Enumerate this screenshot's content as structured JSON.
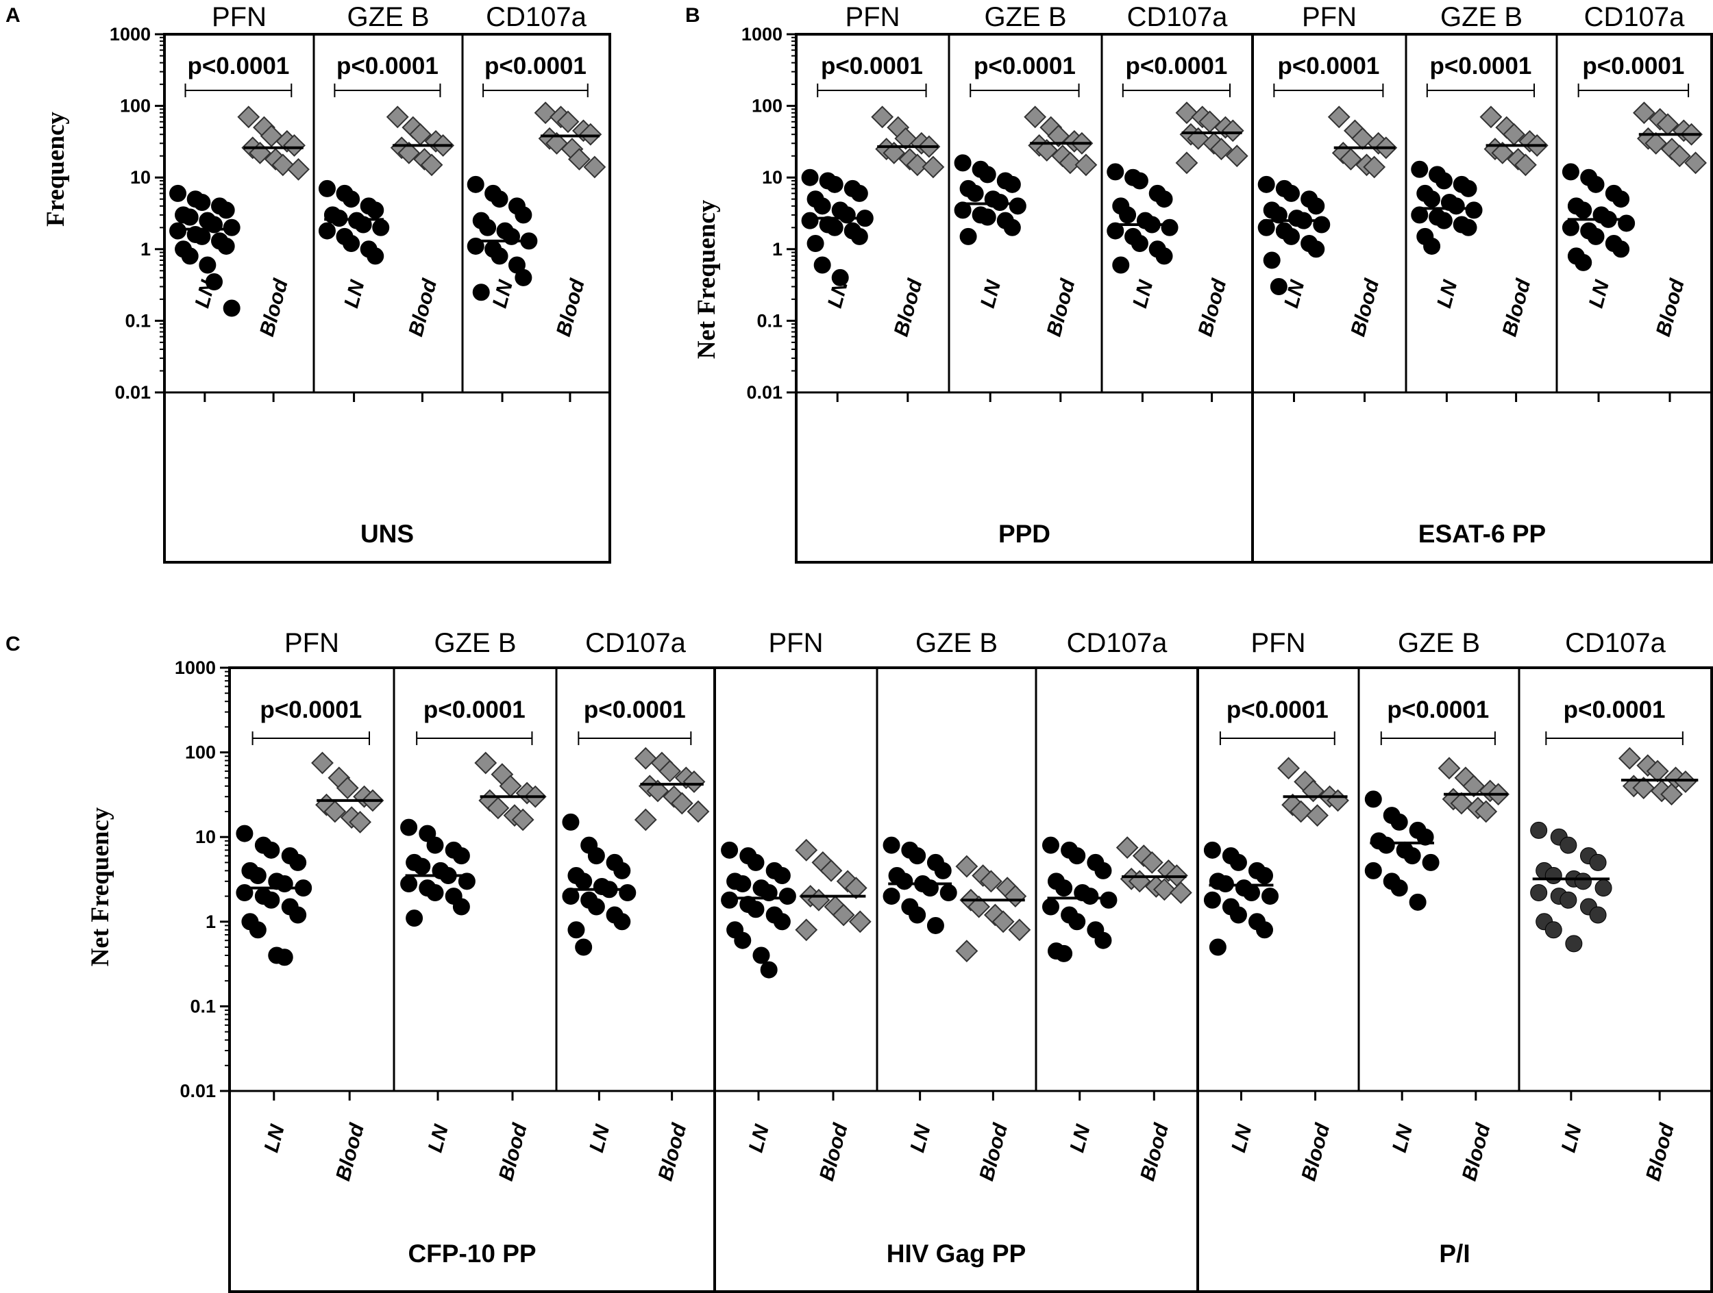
{
  "chart_data": [
    {
      "type": "scatter",
      "panel": "A",
      "ylabel": "Frequency",
      "yscale": "log",
      "ylim": [
        0.01,
        1000
      ],
      "yticks": [
        "0.01",
        "0.1",
        "1",
        "10",
        "100",
        "1000"
      ],
      "groups": [
        {
          "label": "UNS",
          "columns": [
            {
              "title": "PFN",
              "pvalue": "p<0.0001",
              "LN": {
                "label": "LN",
                "median": 1.9,
                "values": [
                  6,
                  5,
                  4.5,
                  4,
                  3.5,
                  3,
                  2.8,
                  2.5,
                  2.2,
                  2,
                  1.8,
                  1.6,
                  1.5,
                  1.3,
                  1.1,
                  1,
                  0.8,
                  0.6,
                  0.35,
                  0.15
                ]
              },
              "Blood": {
                "label": "Blood",
                "median": 26,
                "values": [
                  70,
                  50,
                  38,
                  32,
                  28,
                  26,
                  22,
                  18,
                  15,
                  13
                ]
              }
            },
            {
              "title": "GZE B",
              "pvalue": "p<0.0001",
              "LN": {
                "label": "LN",
                "median": 2.6,
                "values": [
                  7,
                  6,
                  5,
                  4,
                  3.5,
                  3,
                  2.7,
                  2.5,
                  2.2,
                  2,
                  1.8,
                  1.5,
                  1.2,
                  1,
                  0.8
                ]
              },
              "Blood": {
                "label": "Blood",
                "median": 28,
                "values": [
                  70,
                  50,
                  40,
                  32,
                  28,
                  26,
                  22,
                  18,
                  15
                ]
              }
            },
            {
              "title": "CD107a",
              "pvalue": "p<0.0001",
              "LN": {
                "label": "LN",
                "median": 1.3,
                "values": [
                  8,
                  6,
                  5,
                  4,
                  3,
                  2.5,
                  2,
                  1.8,
                  1.5,
                  1.3,
                  1.1,
                  1,
                  0.8,
                  0.6,
                  0.4,
                  0.25
                ]
              },
              "Blood": {
                "label": "Blood",
                "median": 38,
                "values": [
                  80,
                  70,
                  60,
                  45,
                  40,
                  35,
                  30,
                  25,
                  18,
                  14
                ]
              }
            }
          ]
        }
      ]
    },
    {
      "type": "scatter",
      "panel": "B",
      "ylabel": "Net Frequency",
      "yscale": "log",
      "ylim": [
        0.01,
        1000
      ],
      "yticks": [
        "0.01",
        "0.1",
        "1",
        "10",
        "100",
        "1000"
      ],
      "groups": [
        {
          "label": "PPD",
          "columns": [
            {
              "title": "PFN",
              "pvalue": "p<0.0001",
              "LN": {
                "label": "LN",
                "median": 2.7,
                "values": [
                  10,
                  9,
                  8,
                  7,
                  6,
                  5,
                  4,
                  3.5,
                  3,
                  2.7,
                  2.5,
                  2.2,
                  2,
                  1.8,
                  1.5,
                  1.2,
                  0.6,
                  0.4
                ]
              },
              "Blood": {
                "label": "Blood",
                "median": 27,
                "values": [
                  70,
                  50,
                  35,
                  30,
                  27,
                  25,
                  22,
                  18,
                  15,
                  14
                ]
              }
            },
            {
              "title": "GZE B",
              "pvalue": "p<0.0001",
              "LN": {
                "label": "LN",
                "median": 4.3,
                "values": [
                  16,
                  13,
                  11,
                  9,
                  8,
                  7,
                  6,
                  5,
                  4.5,
                  4,
                  3.5,
                  3,
                  2.8,
                  2.5,
                  2,
                  1.5
                ]
              },
              "Blood": {
                "label": "Blood",
                "median": 30,
                "values": [
                  70,
                  50,
                  38,
                  32,
                  30,
                  28,
                  24,
                  20,
                  16,
                  15
                ]
              }
            },
            {
              "title": "CD107a",
              "pvalue": "p<0.0001",
              "LN": {
                "label": "LN",
                "median": 2.2,
                "values": [
                  12,
                  10,
                  9,
                  6,
                  5,
                  4,
                  3,
                  2.5,
                  2.2,
                  2,
                  1.8,
                  1.5,
                  1.2,
                  1,
                  0.8,
                  0.6
                ]
              },
              "Blood": {
                "label": "Blood",
                "median": 42,
                "values": [
                  80,
                  70,
                  60,
                  50,
                  45,
                  40,
                  35,
                  30,
                  25,
                  20,
                  16
                ]
              }
            }
          ]
        },
        {
          "label": "ESAT-6 PP",
          "columns": [
            {
              "title": "PFN",
              "pvalue": "p<0.0001",
              "LN": {
                "label": "LN",
                "median": 2.5,
                "values": [
                  8,
                  7,
                  6,
                  5,
                  4,
                  3.5,
                  3,
                  2.7,
                  2.5,
                  2.2,
                  2,
                  1.8,
                  1.5,
                  1.2,
                  1,
                  0.7,
                  0.3
                ]
              },
              "Blood": {
                "label": "Blood",
                "median": 26,
                "values": [
                  70,
                  45,
                  35,
                  30,
                  26,
                  22,
                  18,
                  15,
                  14
                ]
              }
            },
            {
              "title": "GZE B",
              "pvalue": "p<0.0001",
              "LN": {
                "label": "LN",
                "median": 3.7,
                "values": [
                  13,
                  11,
                  9,
                  8,
                  7,
                  6,
                  5,
                  4.5,
                  4,
                  3.5,
                  3,
                  2.8,
                  2.5,
                  2.2,
                  2,
                  1.5,
                  1.1
                ]
              },
              "Blood": {
                "label": "Blood",
                "median": 28,
                "values": [
                  70,
                  50,
                  40,
                  32,
                  28,
                  25,
                  22,
                  18,
                  15
                ]
              }
            },
            {
              "title": "CD107a",
              "pvalue": "p<0.0001",
              "LN": {
                "label": "LN",
                "median": 2.6,
                "values": [
                  12,
                  10,
                  8,
                  6,
                  5,
                  4,
                  3.5,
                  3,
                  2.6,
                  2.3,
                  2,
                  1.8,
                  1.5,
                  1.2,
                  1,
                  0.8,
                  0.65
                ]
              },
              "Blood": {
                "label": "Blood",
                "median": 40,
                "values": [
                  80,
                  65,
                  55,
                  45,
                  40,
                  35,
                  30,
                  25,
                  20,
                  16
                ]
              }
            }
          ]
        }
      ]
    },
    {
      "type": "scatter",
      "panel": "C",
      "ylabel": "Net Frequency",
      "yscale": "log",
      "ylim": [
        0.01,
        1000
      ],
      "yticks": [
        "0.01",
        "0.1",
        "1",
        "10",
        "100",
        "1000"
      ],
      "groups": [
        {
          "label": "CFP-10 PP",
          "columns": [
            {
              "title": "PFN",
              "pvalue": "p<0.0001",
              "LN": {
                "label": "LN",
                "median": 2.5,
                "values": [
                  11,
                  8,
                  7,
                  6,
                  5,
                  4,
                  3.5,
                  3,
                  2.8,
                  2.5,
                  2.2,
                  2,
                  1.8,
                  1.5,
                  1.2,
                  1,
                  0.8,
                  0.4,
                  0.38
                ]
              },
              "Blood": {
                "label": "Blood",
                "median": 27,
                "values": [
                  75,
                  50,
                  38,
                  30,
                  27,
                  24,
                  20,
                  17,
                  15
                ]
              }
            },
            {
              "title": "GZE B",
              "pvalue": "p<0.0001",
              "LN": {
                "label": "LN",
                "median": 3.5,
                "values": [
                  13,
                  11,
                  8,
                  7,
                  6,
                  5,
                  4.5,
                  4,
                  3.5,
                  3,
                  2.8,
                  2.5,
                  2.2,
                  2,
                  1.5,
                  1.1
                ]
              },
              "Blood": {
                "label": "Blood",
                "median": 30,
                "values": [
                  75,
                  55,
                  40,
                  33,
                  30,
                  27,
                  22,
                  18,
                  16
                ]
              }
            },
            {
              "title": "CD107a",
              "pvalue": "p<0.0001",
              "LN": {
                "label": "LN",
                "median": 2.4,
                "values": [
                  15,
                  8,
                  6,
                  5,
                  4,
                  3.5,
                  3,
                  2.6,
                  2.4,
                  2.2,
                  2,
                  1.8,
                  1.5,
                  1.2,
                  1,
                  0.8,
                  0.5
                ]
              },
              "Blood": {
                "label": "Blood",
                "median": 42,
                "values": [
                  85,
                  75,
                  60,
                  50,
                  45,
                  40,
                  35,
                  30,
                  25,
                  20,
                  16
                ]
              }
            }
          ]
        },
        {
          "label": "HIV Gag PP",
          "columns": [
            {
              "title": "PFN",
              "pvalue": "",
              "LN": {
                "label": "LN",
                "median": 1.9,
                "values": [
                  7,
                  6,
                  5,
                  4,
                  3.5,
                  3,
                  2.8,
                  2.5,
                  2.2,
                  2,
                  1.8,
                  1.6,
                  1.4,
                  1.2,
                  1,
                  0.8,
                  0.6,
                  0.4,
                  0.27
                ]
              },
              "Blood": {
                "label": "Blood",
                "median": 2.0,
                "values": [
                  7,
                  5,
                  4,
                  3,
                  2.5,
                  2,
                  1.8,
                  1.5,
                  1.2,
                  1,
                  0.8
                ]
              }
            },
            {
              "title": "GZE B",
              "pvalue": "",
              "LN": {
                "label": "LN",
                "median": 2.8,
                "values": [
                  8,
                  7,
                  6,
                  5,
                  4,
                  3.5,
                  3,
                  2.8,
                  2.5,
                  2.2,
                  2,
                  1.5,
                  1.2,
                  0.9
                ]
              },
              "Blood": {
                "label": "Blood",
                "median": 1.8,
                "values": [
                  4.5,
                  3.5,
                  3,
                  2.5,
                  2,
                  1.8,
                  1.5,
                  1.2,
                  1,
                  0.8,
                  0.45
                ]
              }
            },
            {
              "title": "CD107a",
              "pvalue": "",
              "LN": {
                "label": "LN",
                "median": 1.9,
                "values": [
                  8,
                  7,
                  6,
                  5,
                  4,
                  3,
                  2.5,
                  2.2,
                  2,
                  1.8,
                  1.5,
                  1.2,
                  1,
                  0.8,
                  0.6,
                  0.45,
                  0.42
                ]
              },
              "Blood": {
                "label": "Blood",
                "median": 3.4,
                "values": [
                  7.5,
                  6,
                  5,
                  4,
                  3.5,
                  3.2,
                  3,
                  2.6,
                  2.4,
                  2.2
                ]
              }
            }
          ]
        },
        {
          "label": "P/I",
          "columns": [
            {
              "title": "PFN",
              "pvalue": "p<0.0001",
              "LN": {
                "label": "LN",
                "median": 2.7,
                "values": [
                  7,
                  6,
                  5,
                  4,
                  3.5,
                  3,
                  2.8,
                  2.5,
                  2.2,
                  2,
                  1.8,
                  1.5,
                  1.2,
                  1,
                  0.8,
                  0.5
                ]
              },
              "Blood": {
                "label": "Blood",
                "median": 30,
                "values": [
                  65,
                  45,
                  35,
                  30,
                  27,
                  24,
                  20,
                  18
                ]
              }
            },
            {
              "title": "GZE B",
              "pvalue": "p<0.0001",
              "LN": {
                "label": "LN",
                "median": 8.5,
                "values": [
                  28,
                  18,
                  15,
                  12,
                  10,
                  9,
                  8,
                  7,
                  6,
                  5,
                  4,
                  3,
                  2.5,
                  1.7
                ]
              },
              "Blood": {
                "label": "Blood",
                "median": 32,
                "values": [
                  65,
                  50,
                  40,
                  35,
                  32,
                  28,
                  25,
                  22,
                  20
                ]
              }
            },
            {
              "title": "CD107a",
              "pvalue": "p<0.0001",
              "LN": {
                "label": "LN",
                "median": 3.2,
                "values": [
                  12,
                  10,
                  8,
                  6,
                  5,
                  4,
                  3.5,
                  3.2,
                  3,
                  2.5,
                  2.2,
                  2,
                  1.8,
                  1.5,
                  1.2,
                  1,
                  0.8,
                  0.55
                ]
              },
              "Blood": {
                "label": "Blood",
                "median": 47,
                "values": [
                  85,
                  70,
                  60,
                  50,
                  45,
                  40,
                  38,
                  35,
                  32
                ]
              }
            }
          ]
        }
      ]
    }
  ]
}
